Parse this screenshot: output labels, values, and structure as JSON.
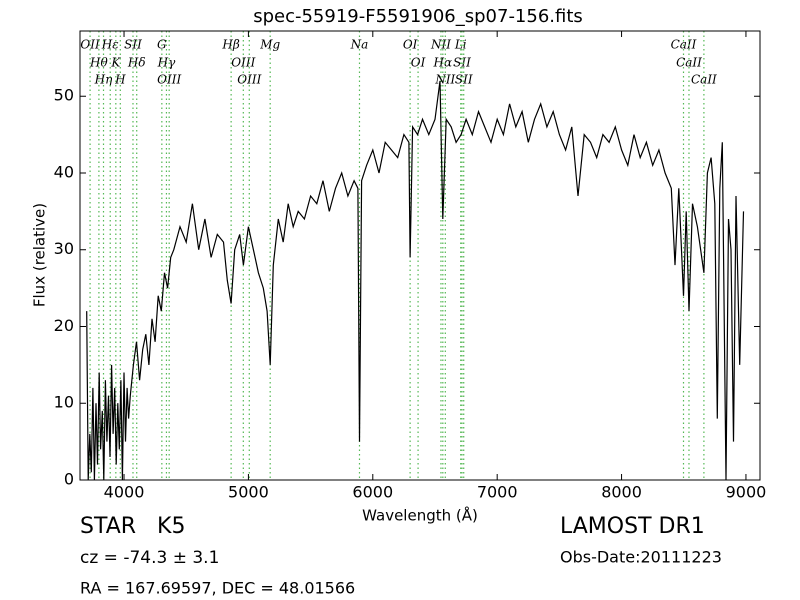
{
  "chart_data": {
    "type": "line",
    "title": "spec-55919-F5591906_sp07-156.fits",
    "xlabel": "Wavelength (Å)",
    "ylabel": "Flux (relative)",
    "color": "#000000",
    "line_marker_color": "#55b855",
    "x": [
      3700,
      3712,
      3725,
      3737,
      3750,
      3762,
      3775,
      3787,
      3800,
      3812,
      3825,
      3837,
      3850,
      3862,
      3875,
      3887,
      3900,
      3912,
      3925,
      3937,
      3950,
      3962,
      3975,
      3987,
      4000,
      4012,
      4025,
      4037,
      4050,
      4075,
      4100,
      4125,
      4150,
      4175,
      4200,
      4225,
      4250,
      4275,
      4300,
      4325,
      4350,
      4375,
      4400,
      4450,
      4500,
      4550,
      4600,
      4650,
      4700,
      4750,
      4800,
      4830,
      4861,
      4890,
      4930,
      4960,
      5000,
      5040,
      5080,
      5120,
      5150,
      5175,
      5200,
      5240,
      5280,
      5320,
      5360,
      5400,
      5450,
      5500,
      5550,
      5600,
      5650,
      5700,
      5750,
      5800,
      5850,
      5880,
      5893,
      5910,
      5950,
      6000,
      6050,
      6100,
      6150,
      6200,
      6250,
      6290,
      6300,
      6320,
      6360,
      6400,
      6450,
      6500,
      6540,
      6563,
      6590,
      6630,
      6670,
      6710,
      6750,
      6800,
      6850,
      6900,
      6950,
      7000,
      7050,
      7100,
      7150,
      7200,
      7250,
      7300,
      7350,
      7400,
      7450,
      7500,
      7550,
      7600,
      7650,
      7700,
      7750,
      7800,
      7850,
      7900,
      7950,
      8000,
      8050,
      8100,
      8150,
      8200,
      8250,
      8300,
      8350,
      8400,
      8430,
      8460,
      8498,
      8520,
      8542,
      8570,
      8610,
      8662,
      8690,
      8720,
      8750,
      8770,
      8790,
      8810,
      8840,
      8860,
      8880,
      8900,
      8920,
      8950,
      8980
    ],
    "values": [
      22,
      0,
      6,
      1,
      12,
      0,
      10,
      2,
      14,
      4,
      9,
      0,
      13,
      5,
      11,
      3,
      15,
      6,
      12,
      2,
      10,
      4,
      13,
      0,
      14,
      5,
      12,
      8,
      11,
      15,
      18,
      13,
      17,
      19,
      15,
      21,
      18,
      24,
      22,
      27,
      25,
      29,
      30,
      33,
      31,
      36,
      30,
      34,
      29,
      32,
      31,
      26,
      23,
      30,
      32,
      28,
      33,
      30,
      27,
      25,
      22,
      15,
      28,
      34,
      31,
      36,
      33,
      35,
      34,
      37,
      36,
      39,
      35,
      38,
      40,
      37,
      39,
      38,
      5,
      39,
      41,
      43,
      40,
      44,
      43,
      42,
      45,
      44,
      29,
      46,
      45,
      47,
      45,
      47,
      52,
      34,
      47,
      46,
      44,
      45,
      47,
      45,
      48,
      46,
      44,
      47,
      45,
      49,
      46,
      48,
      44,
      47,
      49,
      46,
      48,
      45,
      43,
      46,
      37,
      45,
      44,
      42,
      45,
      44,
      46,
      43,
      41,
      45,
      42,
      44,
      41,
      43,
      40,
      38,
      28,
      38,
      24,
      35,
      22,
      36,
      33,
      27,
      40,
      42,
      36,
      8,
      38,
      44,
      0,
      34,
      30,
      5,
      37,
      15,
      35
    ],
    "xlim": [
      3646,
      9113
    ],
    "ylim": [
      0,
      58.5
    ],
    "xticks": [
      4000,
      5000,
      6000,
      7000,
      8000,
      9000
    ],
    "yticks": [
      0,
      10,
      20,
      30,
      40,
      50
    ],
    "lines": [
      {
        "label": "OII",
        "x": 3727
      },
      {
        "label": "Hθ",
        "x": 3798
      },
      {
        "label": "Hη",
        "x": 3835
      },
      {
        "label": "Hε",
        "x": 3889
      },
      {
        "label": "K",
        "x": 3934
      },
      {
        "label": "H",
        "x": 3970
      },
      {
        "label": "SII",
        "x": 4072
      },
      {
        "label": "Hδ",
        "x": 4102
      },
      {
        "label": "G",
        "x": 4304
      },
      {
        "label": "Hγ",
        "x": 4341
      },
      {
        "label": "OIII",
        "x": 4363
      },
      {
        "label": "Hβ",
        "x": 4861
      },
      {
        "label": "OIII",
        "x": 4959
      },
      {
        "label": "OIII",
        "x": 5007
      },
      {
        "label": "Mg",
        "x": 5175
      },
      {
        "label": "Na",
        "x": 5893
      },
      {
        "label": "OI",
        "x": 6300
      },
      {
        "label": "OI",
        "x": 6364
      },
      {
        "label": "NII",
        "x": 6548
      },
      {
        "label": "Hα",
        "x": 6563
      },
      {
        "label": "NII",
        "x": 6583
      },
      {
        "label": "Li",
        "x": 6707
      },
      {
        "label": "SII",
        "x": 6717
      },
      {
        "label": "SII",
        "x": 6731
      },
      {
        "label": "CaII",
        "x": 8498
      },
      {
        "label": "CaII",
        "x": 8542
      },
      {
        "label": "CaII",
        "x": 8662
      }
    ],
    "object_class": "STAR   K5",
    "redshift": "cz = -74.3 ± 3.1",
    "coordinates": "RA = 167.69597, DEC = 48.01566",
    "survey": "LAMOST DR1",
    "obs_date": "Obs-Date:20111223"
  }
}
